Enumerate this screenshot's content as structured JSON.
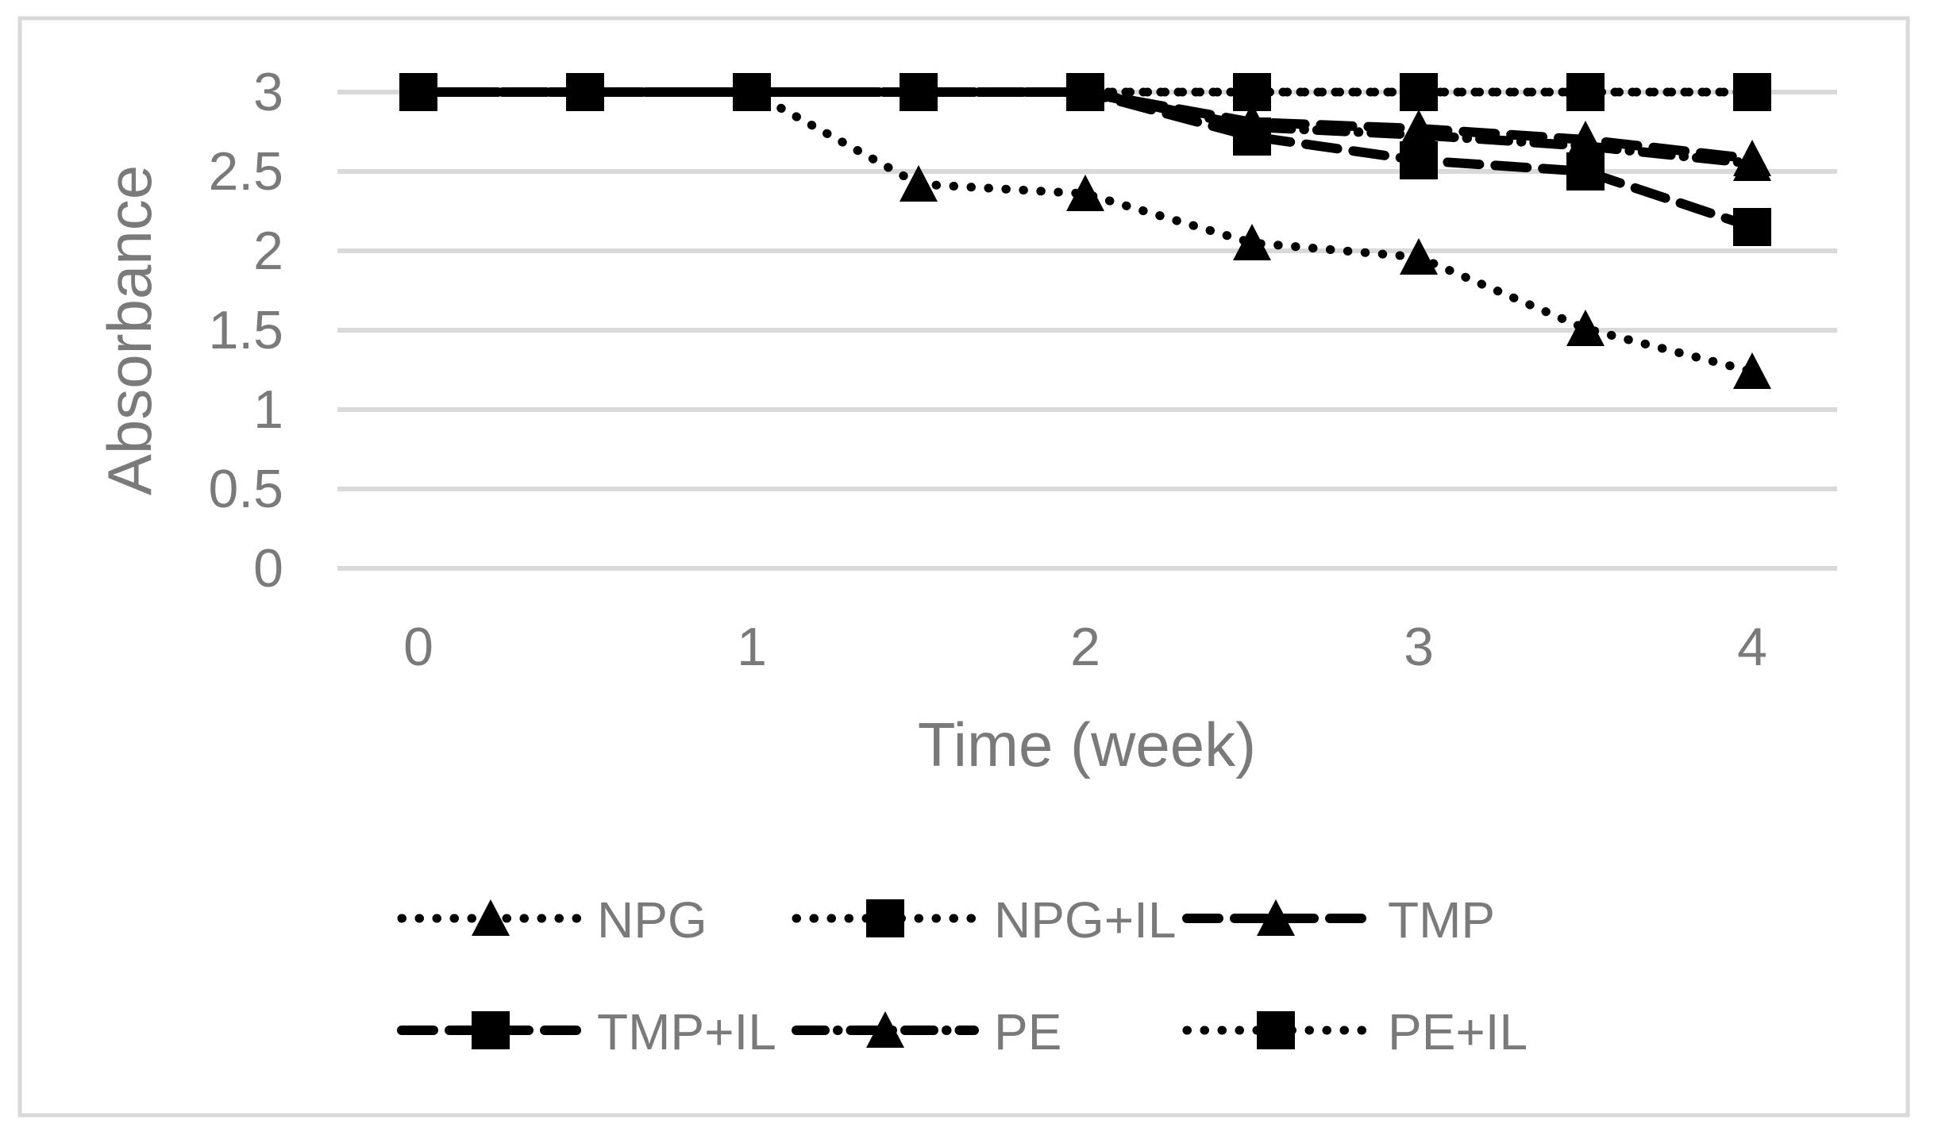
{
  "chart_data": {
    "type": "line",
    "title": "",
    "xlabel": "Time (week)",
    "ylabel": "Absorbance",
    "x": [
      0,
      0.5,
      1,
      1.5,
      2,
      2.5,
      3,
      3.5,
      4
    ],
    "x_tick_labels": [
      "0",
      "1",
      "2",
      "3",
      "4"
    ],
    "y_tick_labels": [
      "3",
      "2.5",
      "2",
      "1.5",
      "1",
      "0.5",
      "0"
    ],
    "xlim": [
      -0.25,
      4.25
    ],
    "ylim": [
      0,
      3
    ],
    "grid": "horizontal",
    "legend_position": "bottom",
    "legend_rows": [
      [
        "NPG",
        "NPG+IL",
        "TMP"
      ],
      [
        "TMP+IL",
        "PE",
        "PE+IL"
      ]
    ],
    "series": [
      {
        "name": "NPG",
        "line_style": "dotted",
        "marker": "triangle",
        "values": [
          3,
          3,
          3,
          2.42,
          2.36,
          2.05,
          1.96,
          1.51,
          1.24
        ]
      },
      {
        "name": "NPG+IL",
        "line_style": "dotted",
        "marker": "square",
        "values": [
          3,
          3,
          3,
          3,
          3,
          3,
          3,
          3,
          3
        ]
      },
      {
        "name": "TMP",
        "line_style": "dashed",
        "marker": "triangle",
        "values": [
          3,
          3,
          3,
          3,
          3,
          2.81,
          2.77,
          2.7,
          2.58
        ]
      },
      {
        "name": "TMP+IL",
        "line_style": "dashed",
        "marker": "square",
        "values": [
          3,
          3,
          3,
          3,
          3,
          2.72,
          2.57,
          2.5,
          2.15
        ]
      },
      {
        "name": "PE",
        "line_style": "dashdot",
        "marker": "triangle",
        "values": [
          3,
          3,
          3,
          3,
          3,
          2.78,
          2.73,
          2.66,
          2.55
        ]
      },
      {
        "name": "PE+IL",
        "line_style": "dotted",
        "marker": "square",
        "values": [
          3,
          3,
          3,
          3,
          3,
          3,
          3,
          3,
          3
        ]
      }
    ],
    "colors": {
      "series": "#000000",
      "text": "#7a7a7a",
      "grid": "#d9d9d9",
      "border": "#d9d9d9",
      "background": "#ffffff"
    }
  }
}
